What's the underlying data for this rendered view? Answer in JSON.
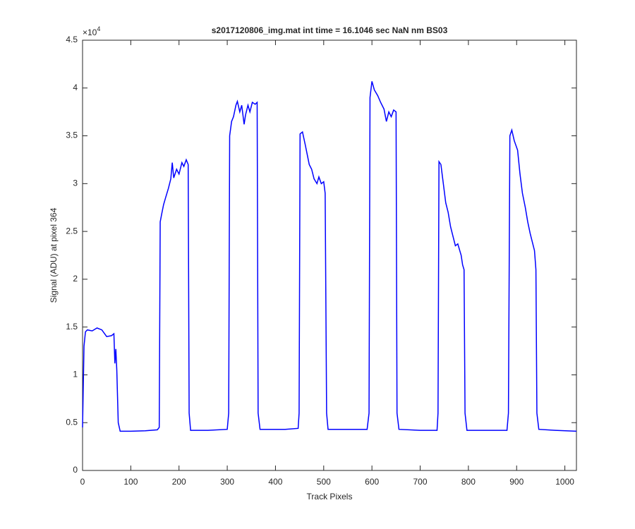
{
  "chart_data": {
    "type": "line",
    "title": "s2017120806_img.mat int time = 16.1046 sec  NaN nm BS03",
    "x_label": "Track Pixels",
    "y_label": "Signal (ADU) at pixel 364",
    "y_multiplier": {
      "base": "×10",
      "power": "4"
    },
    "xlim": [
      0,
      1024
    ],
    "xticks": [
      0,
      100,
      200,
      300,
      400,
      500,
      600,
      700,
      800,
      900,
      1000
    ],
    "ylim": [
      0,
      4.5
    ],
    "yticks": [
      0,
      0.5,
      1,
      1.5,
      2,
      2.5,
      3,
      3.5,
      4,
      4.5
    ],
    "grid": false,
    "series": [
      {
        "color": "#0000ff",
        "x": [
          0,
          3,
          6,
          10,
          20,
          30,
          40,
          50,
          60,
          65,
          67,
          69,
          71,
          74,
          78,
          100,
          130,
          155,
          159,
          161,
          164,
          168,
          172,
          178,
          183,
          186,
          189,
          195,
          200,
          206,
          210,
          215,
          219,
          221,
          224,
          260,
          300,
          303,
          305,
          309,
          313,
          318,
          321,
          326,
          330,
          335,
          338,
          343,
          347,
          352,
          358,
          362,
          364,
          368,
          420,
          447,
          449,
          451,
          456,
          462,
          466,
          470,
          475,
          480,
          486,
          490,
          495,
          500,
          503,
          506,
          509,
          560,
          590,
          594,
          596,
          600,
          605,
          612,
          618,
          625,
          630,
          635,
          640,
          645,
          650,
          652,
          656,
          700,
          735,
          737,
          739,
          743,
          748,
          753,
          758,
          763,
          768,
          773,
          778,
          785,
          788,
          791,
          793,
          797,
          840,
          880,
          883,
          886,
          890,
          895,
          902,
          907,
          912,
          918,
          923,
          928,
          932,
          937,
          940,
          942,
          946,
          980,
          1024
        ],
        "values": [
          0.45,
          1.3,
          1.45,
          1.47,
          1.46,
          1.49,
          1.47,
          1.4,
          1.41,
          1.43,
          1.12,
          1.27,
          1.05,
          0.5,
          0.41,
          0.41,
          0.415,
          0.425,
          0.45,
          2.6,
          2.68,
          2.78,
          2.85,
          2.95,
          3.05,
          3.22,
          3.06,
          3.15,
          3.1,
          3.22,
          3.18,
          3.25,
          3.2,
          0.6,
          0.42,
          0.42,
          0.43,
          0.6,
          3.5,
          3.65,
          3.7,
          3.82,
          3.86,
          3.75,
          3.82,
          3.62,
          3.72,
          3.82,
          3.75,
          3.85,
          3.83,
          3.85,
          0.6,
          0.43,
          0.43,
          0.44,
          0.6,
          3.52,
          3.54,
          3.4,
          3.3,
          3.2,
          3.15,
          3.05,
          3.0,
          3.07,
          3.0,
          3.02,
          2.9,
          0.6,
          0.43,
          0.43,
          0.43,
          0.6,
          3.9,
          4.07,
          3.98,
          3.92,
          3.85,
          3.78,
          3.65,
          3.75,
          3.7,
          3.77,
          3.75,
          0.6,
          0.43,
          0.42,
          0.42,
          0.6,
          3.23,
          3.2,
          3.0,
          2.8,
          2.7,
          2.55,
          2.45,
          2.35,
          2.37,
          2.25,
          2.15,
          2.1,
          0.6,
          0.42,
          0.42,
          0.42,
          0.6,
          3.5,
          3.56,
          3.45,
          3.35,
          3.1,
          2.9,
          2.75,
          2.6,
          2.48,
          2.4,
          2.3,
          2.1,
          0.6,
          0.43,
          0.42,
          0.41
        ]
      }
    ]
  }
}
